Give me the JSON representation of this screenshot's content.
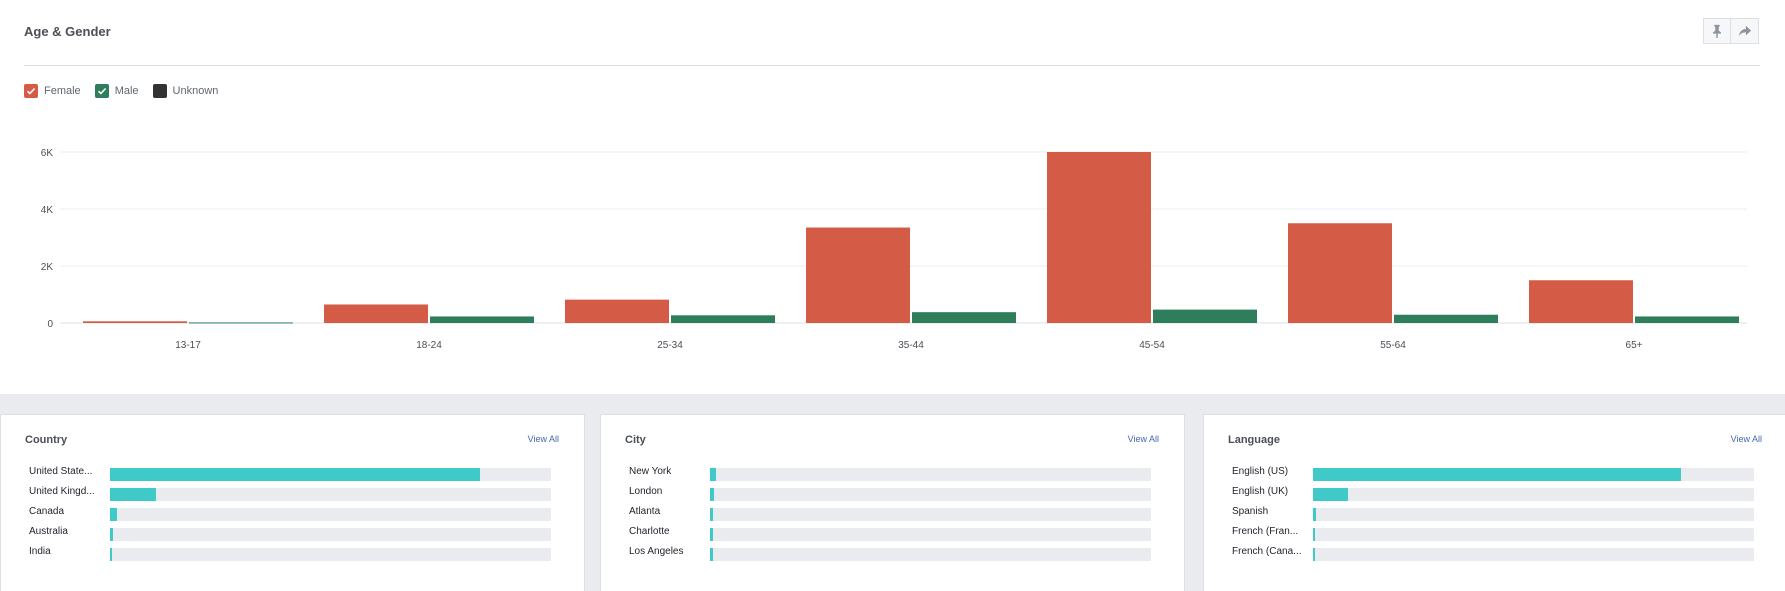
{
  "section": {
    "title": "Age & Gender",
    "toolbar": [
      {
        "name": "pin-button",
        "icon": "pin-icon"
      },
      {
        "name": "share-button",
        "icon": "share-arrow-icon"
      }
    ]
  },
  "legend": [
    {
      "label": "Female",
      "color": "#d45c47",
      "checked": true
    },
    {
      "label": "Male",
      "color": "#2e7d5b",
      "checked": true
    },
    {
      "label": "Unknown",
      "color": "#333333",
      "checked": false
    }
  ],
  "chart_data": {
    "type": "bar",
    "categories": [
      "13-17",
      "18-24",
      "25-34",
      "35-44",
      "45-54",
      "55-64",
      "65+"
    ],
    "series": [
      {
        "name": "Female",
        "color": "#d45c47",
        "values": [
          60,
          650,
          820,
          3350,
          6000,
          3500,
          1500
        ]
      },
      {
        "name": "Male",
        "color": "#2e7d5b",
        "values": [
          20,
          230,
          270,
          380,
          470,
          290,
          230
        ]
      }
    ],
    "yticks": [
      "0",
      "2K",
      "4K",
      "6K"
    ],
    "ytick_values": [
      0,
      2000,
      4000,
      6000
    ],
    "ylim": [
      0,
      6000
    ],
    "grid": true,
    "legend_position": "top-left"
  },
  "cards": [
    {
      "title": "Country",
      "view_all": "View All",
      "rows": [
        {
          "label": "United State...",
          "fraction": 0.84
        },
        {
          "label": "United Kingd...",
          "fraction": 0.105
        },
        {
          "label": "Canada",
          "fraction": 0.015
        },
        {
          "label": "Australia",
          "fraction": 0.007
        },
        {
          "label": "India",
          "fraction": 0.004
        }
      ]
    },
    {
      "title": "City",
      "view_all": "View All",
      "rows": [
        {
          "label": "New York",
          "fraction": 0.014
        },
        {
          "label": "London",
          "fraction": 0.008
        },
        {
          "label": "Atlanta",
          "fraction": 0.007
        },
        {
          "label": "Charlotte",
          "fraction": 0.006
        },
        {
          "label": "Los Angeles",
          "fraction": 0.006
        }
      ]
    },
    {
      "title": "Language",
      "view_all": "View All",
      "rows": [
        {
          "label": "English (US)",
          "fraction": 0.835
        },
        {
          "label": "English (UK)",
          "fraction": 0.08
        },
        {
          "label": "Spanish",
          "fraction": 0.006
        },
        {
          "label": "French (Fran...",
          "fraction": 0.004
        },
        {
          "label": "French (Cana...",
          "fraction": 0.004
        }
      ]
    }
  ]
}
